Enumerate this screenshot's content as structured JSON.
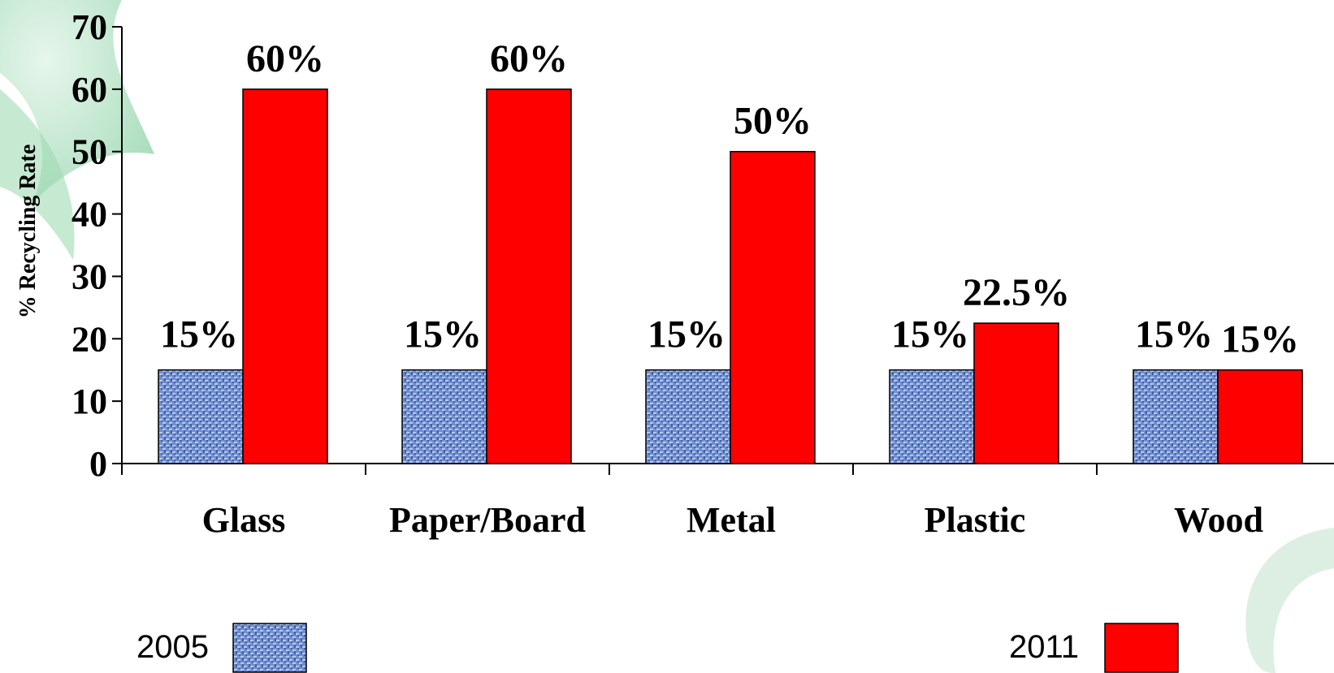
{
  "chart_data": {
    "type": "bar",
    "ylabel": "% Recycling Rate",
    "ylim": [
      0,
      70
    ],
    "yticks": [
      "0",
      "10",
      "20",
      "30",
      "40",
      "50",
      "60",
      "70"
    ],
    "categories": [
      "Glass",
      "Paper/Board",
      "Metal",
      "Plastic",
      "Wood"
    ],
    "series": [
      {
        "name": "2005",
        "values": [
          15,
          15,
          15,
          15,
          15
        ],
        "labels": [
          "15%",
          "15%",
          "15%",
          "15%",
          "15%"
        ],
        "color": "#6f8fcf"
      },
      {
        "name": "2011",
        "values": [
          60,
          60,
          50,
          22.5,
          15
        ],
        "labels": [
          "60%",
          "60%",
          "50%",
          "22.5%",
          "15%"
        ],
        "color": "#ff0000"
      }
    ],
    "grid": false,
    "legend_position": "bottom"
  },
  "colors": {
    "series_2005_base": "#6f8fcf",
    "series_2011": "#ff0000",
    "background_leaf": "#8fd3a8"
  }
}
